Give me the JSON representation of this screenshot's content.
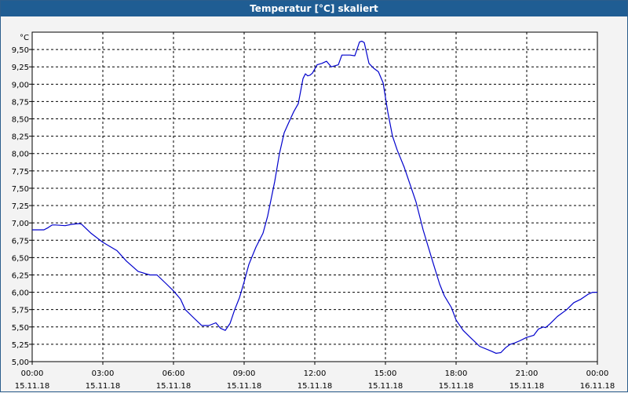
{
  "window": {
    "title": "Temperatur [°C] skaliert"
  },
  "chart_data": {
    "type": "line",
    "unit_label": "°C",
    "y_ticks": [
      "5,00",
      "5,25",
      "5,50",
      "5,75",
      "6,00",
      "6,25",
      "6,50",
      "6,75",
      "7,00",
      "7,25",
      "7,50",
      "7,75",
      "8,00",
      "8,25",
      "8,50",
      "8,75",
      "9,00",
      "9,25",
      "9,50"
    ],
    "ylim": [
      5.0,
      9.75
    ],
    "xlim": [
      0,
      24
    ],
    "x_ticks": [
      {
        "time": "00:00",
        "date": "15.11.18"
      },
      {
        "time": "03:00",
        "date": "15.11.18"
      },
      {
        "time": "06:00",
        "date": "15.11.18"
      },
      {
        "time": "09:00",
        "date": "15.11.18"
      },
      {
        "time": "12:00",
        "date": "15.11.18"
      },
      {
        "time": "15:00",
        "date": "15.11.18"
      },
      {
        "time": "18:00",
        "date": "15.11.18"
      },
      {
        "time": "21:00",
        "date": "15.11.18"
      },
      {
        "time": "00:00",
        "date": "16.11.18"
      }
    ],
    "grid": true,
    "line_color": "#0000cc",
    "series": [
      {
        "x": [
          0,
          0.5,
          0.67,
          0.85,
          1.0,
          1.4,
          1.7,
          2.0,
          2.1,
          2.5,
          3.0,
          3.6,
          4.0,
          4.5,
          5.0,
          5.3,
          5.7,
          6.0,
          6.3,
          6.5,
          6.8,
          7.2,
          7.5,
          7.8,
          8.0,
          8.2,
          8.4,
          8.6,
          8.8,
          9.0,
          9.2,
          9.5,
          9.8,
          10.0,
          10.3,
          10.5,
          10.7,
          10.9,
          11.1,
          11.3,
          11.5,
          11.6,
          11.7,
          11.8,
          11.9,
          12.1,
          12.3,
          12.5,
          12.7,
          13.0,
          13.15,
          13.3,
          13.5,
          13.7,
          13.9,
          14.0,
          14.1,
          14.2,
          14.3,
          14.5,
          14.7,
          14.9,
          15.1,
          15.3,
          15.5,
          15.8,
          16.0,
          16.3,
          16.6,
          17.0,
          17.3,
          17.5,
          17.8,
          18.0,
          18.3,
          18.6,
          19.0,
          19.5,
          19.7,
          19.9,
          20.1,
          20.3,
          20.5,
          20.7,
          21.0,
          21.3,
          21.5,
          21.7,
          21.8,
          22.0,
          22.3,
          22.7,
          23.0,
          23.3,
          23.6,
          23.8,
          24.0
        ],
        "values": [
          6.9,
          6.9,
          6.93,
          6.97,
          6.97,
          6.96,
          6.98,
          6.99,
          6.98,
          6.85,
          6.72,
          6.6,
          6.45,
          6.3,
          6.25,
          6.25,
          6.12,
          6.02,
          5.9,
          5.75,
          5.65,
          5.52,
          5.52,
          5.56,
          5.48,
          5.45,
          5.55,
          5.75,
          5.92,
          6.15,
          6.4,
          6.65,
          6.85,
          7.1,
          7.6,
          8.0,
          8.3,
          8.45,
          8.6,
          8.72,
          9.08,
          9.15,
          9.12,
          9.13,
          9.16,
          9.28,
          9.3,
          9.33,
          9.25,
          9.28,
          9.42,
          9.42,
          9.42,
          9.41,
          9.61,
          9.62,
          9.6,
          9.45,
          9.3,
          9.23,
          9.18,
          9.02,
          8.6,
          8.25,
          8.05,
          7.8,
          7.6,
          7.3,
          6.9,
          6.45,
          6.12,
          5.95,
          5.78,
          5.6,
          5.45,
          5.35,
          5.22,
          5.15,
          5.12,
          5.13,
          5.2,
          5.25,
          5.27,
          5.3,
          5.35,
          5.38,
          5.47,
          5.5,
          5.49,
          5.55,
          5.65,
          5.75,
          5.85,
          5.9,
          5.97,
          6.0,
          6.0
        ]
      }
    ]
  }
}
